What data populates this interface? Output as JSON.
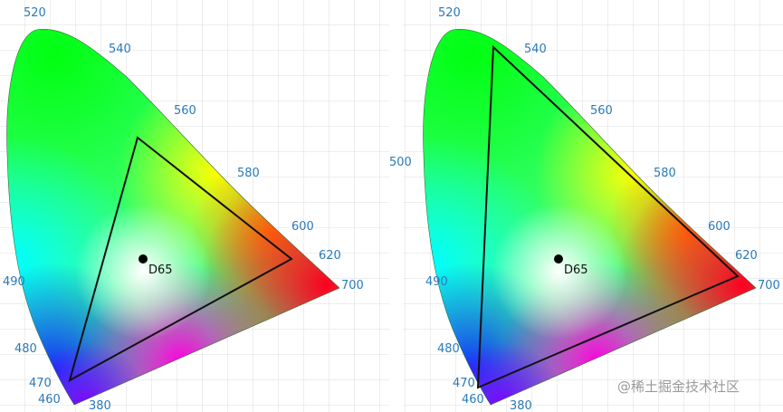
{
  "panels": [
    {
      "wavelength_labels": [
        "520",
        "540",
        "560",
        "580",
        "600",
        "620",
        "700",
        "490",
        "480",
        "470",
        "460",
        "380"
      ],
      "white_point": "D65"
    },
    {
      "wavelength_labels": [
        "520",
        "540",
        "560",
        "580",
        "600",
        "620",
        "700",
        "500",
        "490",
        "480",
        "470",
        "460",
        "380"
      ],
      "white_point": "D65"
    }
  ],
  "watermark": "@稀土掘金技术社区"
}
